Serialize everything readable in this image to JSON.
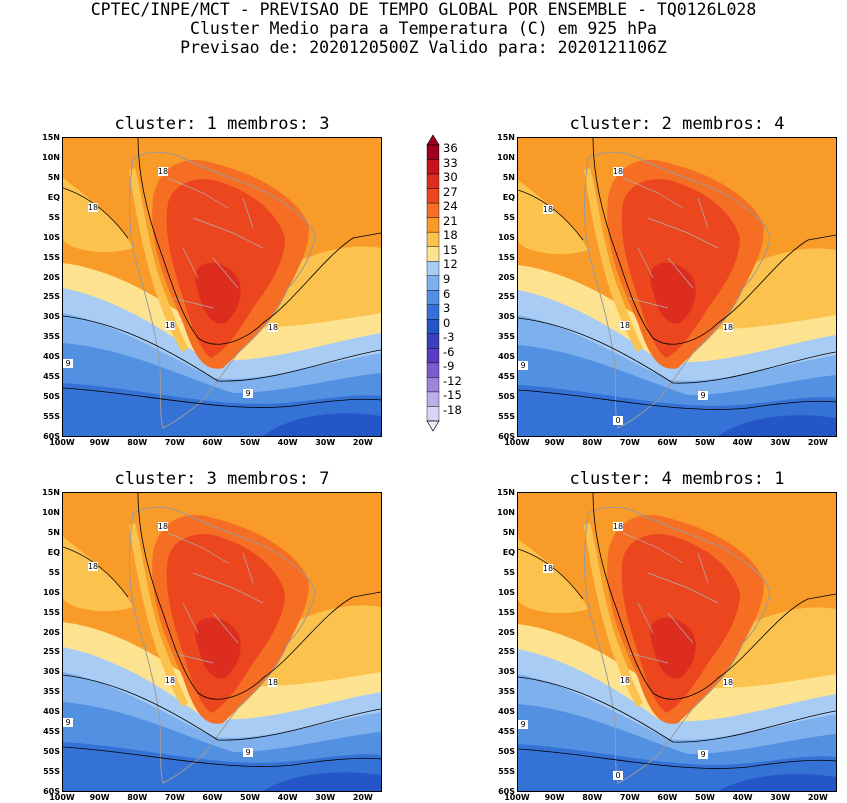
{
  "header": {
    "line1": "CPTEC/INPE/MCT - PREVISAO DE TEMPO GLOBAL POR ENSEMBLE - TQ0126L028",
    "line2": "Cluster Medio para a Temperatura (C) em 925 hPa",
    "line3": "Previsao de: 2020120500Z   Valido para: 2020121106Z"
  },
  "panels": [
    {
      "title": "cluster: 1  membros: 3"
    },
    {
      "title": "cluster: 2  membros: 4"
    },
    {
      "title": "cluster: 3  membros: 7"
    },
    {
      "title": "cluster: 4  membros: 1"
    }
  ],
  "lat_labels": [
    "15N",
    "10N",
    "5N",
    "EQ",
    "5S",
    "10S",
    "15S",
    "20S",
    "25S",
    "30S",
    "35S",
    "40S",
    "45S",
    "50S",
    "55S",
    "60S"
  ],
  "lon_labels": [
    "100W",
    "90W",
    "80W",
    "70W",
    "60W",
    "50W",
    "40W",
    "30W",
    "20W"
  ],
  "legend": {
    "levels": [
      "36",
      "33",
      "30",
      "27",
      "24",
      "21",
      "18",
      "15",
      "12",
      "9",
      "6",
      "3",
      "0",
      "-3",
      "-6",
      "-9",
      "-12",
      "-15",
      "-18"
    ],
    "colors": [
      "#a0001e",
      "#c4141e",
      "#dc2d1e",
      "#eb461e",
      "#f56e23",
      "#f99b28",
      "#fcc24e",
      "#fde38f",
      "#a9ccf5",
      "#7fb0ee",
      "#5290e2",
      "#3572d6",
      "#2456c7",
      "#3a3fbe",
      "#5a3cc4",
      "#7a5bd0",
      "#9c83dc",
      "#bdaeea",
      "#dcd4f5"
    ]
  },
  "contour_labels": {
    "c18": "18",
    "c9": "9",
    "c0": "0"
  },
  "chart_data": {
    "type": "heatmap",
    "variable": "Temperatura (C) em 925 hPa",
    "lat_range": [
      "60S",
      "15N"
    ],
    "lon_range": [
      "100W",
      "15W"
    ],
    "color_scale_levels": [
      -18,
      -15,
      -12,
      -9,
      -6,
      -3,
      0,
      3,
      6,
      9,
      12,
      15,
      18,
      21,
      24,
      27,
      30,
      33,
      36
    ],
    "contour_values_labeled": [
      0,
      9,
      18
    ],
    "panels": [
      {
        "cluster": 1,
        "membros": 3
      },
      {
        "cluster": 2,
        "membros": 4
      },
      {
        "cluster": 3,
        "membros": 7
      },
      {
        "cluster": 4,
        "membros": 1
      }
    ]
  }
}
